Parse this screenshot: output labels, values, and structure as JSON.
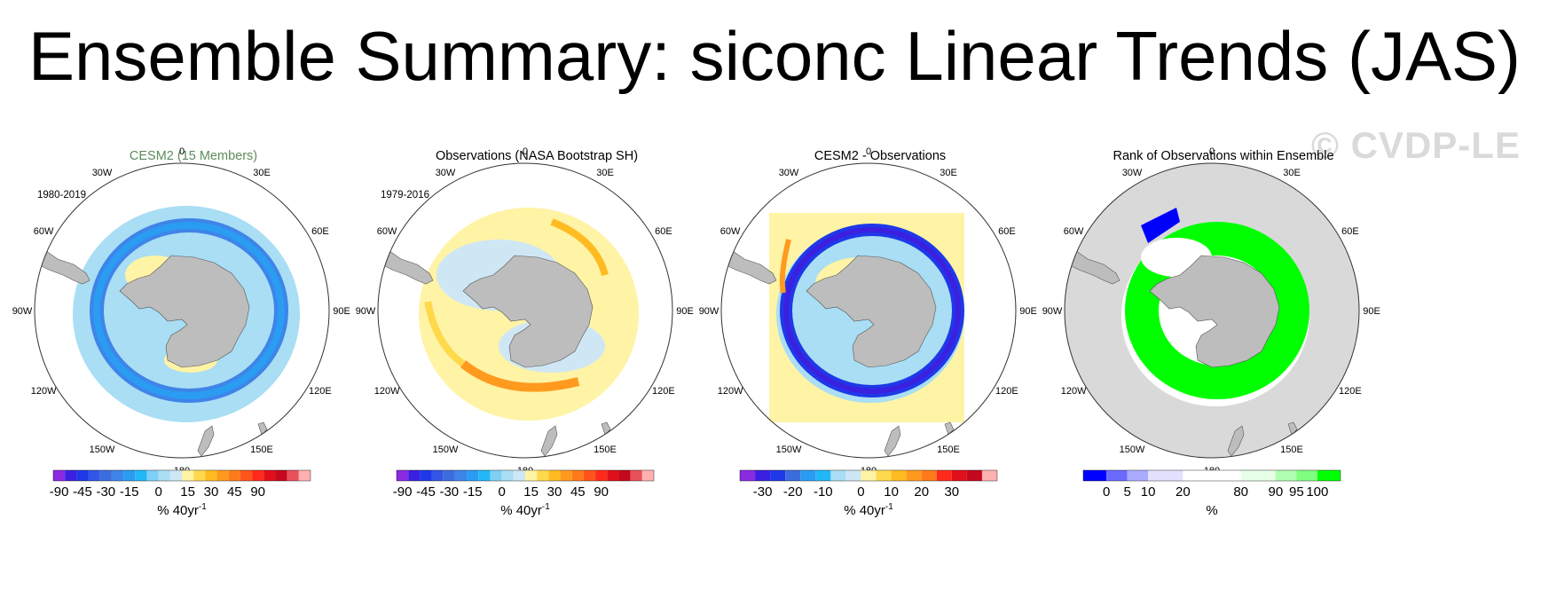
{
  "title": "Ensemble Summary: siconc Linear Trends (JAS)",
  "watermark": "© CVDP-LE",
  "longitude_labels": [
    "0",
    "30E",
    "60E",
    "90E",
    "120E",
    "150E",
    "180",
    "150W",
    "120W",
    "90W",
    "60W",
    "30W"
  ],
  "colors": {
    "land": "#bdbdbd",
    "ocean": "#ffffff",
    "rank_background": "#d9d9d9"
  },
  "panels": [
    {
      "title": "CESM2 (15 Members)",
      "title_color": "#5b8c5a",
      "period": "1980-2019",
      "map_type": "trend-model",
      "colorbar": {
        "colors": [
          "#8a2be2",
          "#3b20e0",
          "#1f38e8",
          "#3355e8",
          "#3c6ddc",
          "#3f84e8",
          "#2a9cf2",
          "#22b8f7",
          "#7fd0f7",
          "#a9def4",
          "#cfe7f5",
          "#fff3a6",
          "#ffd94c",
          "#ffbb22",
          "#ff9a1f",
          "#ff7a1a",
          "#ff551a",
          "#ff2a1a",
          "#e0101a",
          "#c4081e",
          "#e8505a",
          "#ffb0b0"
        ],
        "ticks": [
          "-90",
          "-45",
          "-30",
          "-15",
          "0",
          "15",
          "30",
          "45",
          "90"
        ],
        "tick_positions": [
          0.5,
          2.5,
          4.5,
          6.5,
          9,
          11.5,
          13.5,
          15.5,
          17.5
        ],
        "unit_base": "% 40yr",
        "unit_sup": "-1"
      }
    },
    {
      "title": "Observations (NASA Bootstrap SH)",
      "title_color": "#000000",
      "period": "1979-2016",
      "map_type": "trend-obs",
      "colorbar": {
        "colors": [
          "#8a2be2",
          "#3b20e0",
          "#1f38e8",
          "#3355e8",
          "#3c6ddc",
          "#3f84e8",
          "#2a9cf2",
          "#22b8f7",
          "#7fd0f7",
          "#a9def4",
          "#cfe7f5",
          "#fff3a6",
          "#ffd94c",
          "#ffbb22",
          "#ff9a1f",
          "#ff7a1a",
          "#ff551a",
          "#ff2a1a",
          "#e0101a",
          "#c4081e",
          "#e8505a",
          "#ffb0b0"
        ],
        "ticks": [
          "-90",
          "-45",
          "-30",
          "-15",
          "0",
          "15",
          "30",
          "45",
          "90"
        ],
        "tick_positions": [
          0.5,
          2.5,
          4.5,
          6.5,
          9,
          11.5,
          13.5,
          15.5,
          17.5
        ],
        "unit_base": "% 40yr",
        "unit_sup": "-1"
      }
    },
    {
      "title": "CESM2 - Observations",
      "title_color": "#000000",
      "period": "",
      "map_type": "trend-diff",
      "colorbar": {
        "colors": [
          "#8a2be2",
          "#3b20e0",
          "#1f38e8",
          "#3c6ddc",
          "#2a9cf2",
          "#22b8f7",
          "#a9def4",
          "#cfe7f5",
          "#fff3a6",
          "#ffd94c",
          "#ffbb22",
          "#ff9a1f",
          "#ff7a1a",
          "#ff2a1a",
          "#e0101a",
          "#c4081e",
          "#ffb0b0"
        ],
        "ticks": [
          "-30",
          "-20",
          "-10",
          "0",
          "10",
          "20",
          "30"
        ],
        "tick_positions": [
          1.5,
          3.5,
          5.5,
          8,
          10,
          12,
          14
        ],
        "unit_base": "% 40yr",
        "unit_sup": "-1"
      }
    },
    {
      "title": "Rank of Observations within Ensemble",
      "title_color": "#000000",
      "period": "",
      "map_type": "rank",
      "colorbar": {
        "colors": [
          "#0000ff",
          "#6a6aff",
          "#aaaaff",
          "#e2e2ff",
          "#ffffff",
          "#ffffff",
          "#e6ffe6",
          "#b0ffb0",
          "#7fff7f",
          "#00ff00"
        ],
        "widths": [
          1,
          0.9,
          0.9,
          1.5,
          1.2,
          1.3,
          1.5,
          0.9,
          0.9,
          1.0
        ],
        "ticks": [
          "0",
          "5",
          "10",
          "20",
          "80",
          "90",
          "95",
          "100"
        ],
        "tick_boundaries": [
          1,
          1.9,
          2.8,
          4.3,
          6.8,
          8.3,
          9.2,
          10.1
        ],
        "unit_base": "%",
        "unit_sup": ""
      }
    }
  ]
}
